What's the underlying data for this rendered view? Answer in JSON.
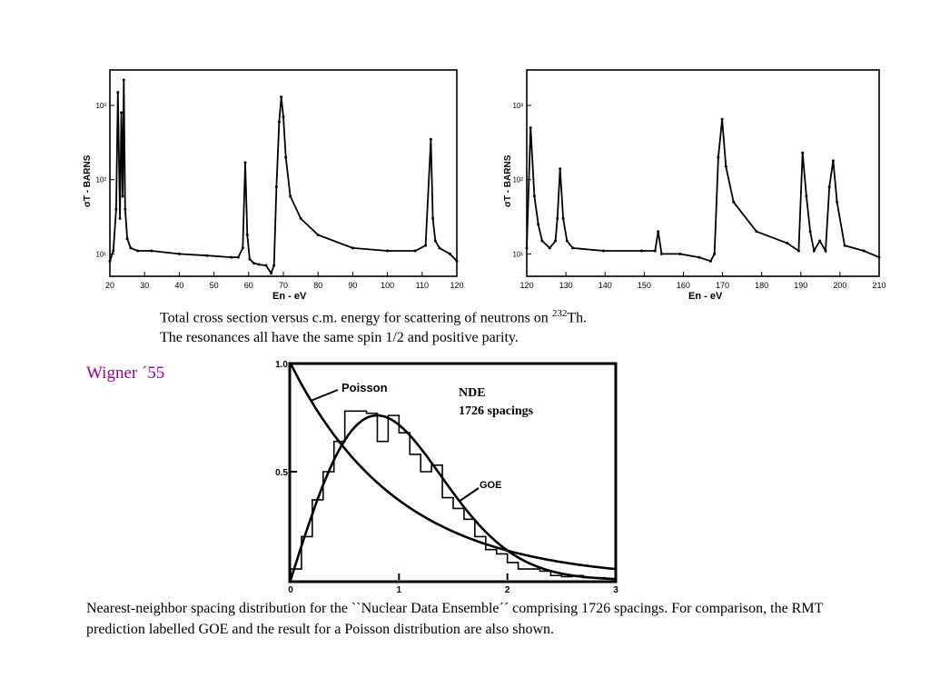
{
  "chart_data": [
    {
      "type": "line",
      "title": "",
      "xlabel": "En - eV",
      "ylabel": "σT - BARNS",
      "yscale": "log",
      "xlim": [
        20,
        120
      ],
      "ylim": [
        5,
        3000
      ],
      "x_ticks": [
        "20",
        "30",
        "40",
        "50",
        "60",
        "70",
        "80",
        "90",
        "100",
        "110",
        "120"
      ],
      "y_ticks": [
        "10¹",
        "10²",
        "10³"
      ],
      "series": [
        {
          "name": "232Th total cross section",
          "x": [
            20.0,
            21.0,
            21.8,
            22.3,
            22.9,
            23.3,
            23.7,
            24.0,
            24.4,
            25.0,
            26.0,
            28.0,
            32.0,
            40.0,
            48.0,
            55.0,
            57.0,
            58.3,
            59.0,
            59.6,
            60.3,
            61.5,
            63.0,
            65.0,
            66.5,
            67.3,
            68.0,
            68.8,
            69.4,
            70.0,
            70.7,
            72.0,
            75.0,
            80.0,
            90.0,
            100.0,
            108.0,
            111.0,
            112.5,
            113.1,
            113.8,
            115.0,
            118.0,
            120.0
          ],
          "y": [
            8,
            11,
            40,
            1500,
            30,
            800,
            60,
            2200,
            40,
            16,
            12,
            11,
            11,
            10,
            9.5,
            9,
            9,
            12,
            170,
            18,
            8.5,
            7.5,
            7.2,
            7.0,
            5.5,
            7,
            80,
            600,
            1300,
            700,
            200,
            60,
            30,
            18,
            12,
            11,
            11,
            13,
            350,
            30,
            15,
            12,
            10,
            8
          ]
        }
      ]
    },
    {
      "type": "line",
      "title": "",
      "xlabel": "En - eV",
      "ylabel": "σT - BARNS",
      "yscale": "log",
      "xlim": [
        120,
        212
      ],
      "ylim": [
        5,
        3000
      ],
      "x_ticks": [
        "120",
        "130",
        "140",
        "150",
        "160",
        "170",
        "180",
        "190",
        "200",
        "210"
      ],
      "y_ticks": [
        "10¹",
        "10²",
        "10³"
      ],
      "series": [
        {
          "name": "232Th total cross section",
          "x": [
            120.0,
            121.0,
            122.0,
            123.0,
            124.0,
            126.0,
            127.5,
            128.0,
            128.7,
            129.5,
            130.5,
            132.0,
            140.0,
            150.0,
            153.5,
            154.3,
            155.2,
            160.0,
            165.0,
            168.0,
            169.0,
            170.0,
            171.0,
            172.0,
            174.0,
            180.0,
            188.0,
            191.0,
            192.0,
            193.0,
            194.0,
            195.0,
            196.5,
            198.0,
            199.0,
            200.0,
            201.0,
            203.0,
            208.0,
            212.0
          ],
          "y": [
            12,
            500,
            60,
            25,
            15,
            12,
            15,
            30,
            140,
            30,
            15,
            12,
            11,
            11,
            11,
            20,
            10,
            10,
            9,
            8,
            10,
            200,
            650,
            150,
            50,
            20,
            14,
            11,
            230,
            60,
            20,
            11,
            15,
            11,
            80,
            180,
            50,
            13,
            11,
            9
          ]
        }
      ]
    },
    {
      "type": "line",
      "title": "",
      "xlabel": "",
      "ylabel": "",
      "xlim": [
        0,
        3
      ],
      "ylim": [
        0,
        1.0
      ],
      "x_ticks": [
        "0",
        "1",
        "2",
        "3"
      ],
      "y_ticks": [
        "0.5",
        "1.0"
      ],
      "annotations": [
        "Poisson",
        "GOE",
        "NDE",
        "1726 spacings"
      ],
      "histogram_bins_start": 0,
      "histogram_bin_width": 0.1,
      "histogram_values": [
        0.05,
        0.2,
        0.37,
        0.5,
        0.64,
        0.78,
        0.78,
        0.77,
        0.64,
        0.76,
        0.68,
        0.58,
        0.5,
        0.53,
        0.38,
        0.33,
        0.28,
        0.2,
        0.14,
        0.12,
        0.08,
        0.05,
        0.05,
        0.04,
        0.02,
        0.015,
        0.02,
        0.01,
        0.01,
        0.005
      ],
      "series": [
        {
          "name": "Poisson",
          "function": "exp(-s)"
        },
        {
          "name": "GOE",
          "function": "(pi/2) s exp(-pi s^2 / 4)"
        }
      ]
    }
  ],
  "text": {
    "caption_top_part1": "Total cross section versus c.m. energy for scattering of neutrons on ",
    "caption_top_sup": "232",
    "caption_top_part2": "Th.",
    "caption_top_line2": "The resonances all have the same spin 1/2 and positive parity.",
    "wigner_label": "Wigner ´55",
    "nde_line1": "NDE",
    "nde_line2": "1726 spacings",
    "poisson_label": "Poisson",
    "goe_label": "GOE",
    "ylabel_left": "σT - BARNS",
    "ylabel_right": "σT - BARNS",
    "xlabel_left": "En - eV",
    "xlabel_right": "En - eV",
    "caption_bottom": "Nearest-neighbor spacing distribution for the ``Nuclear Data Ensemble´´ comprising 1726 spacings. For comparison, the RMT prediction labelled GOE and the result for a Poisson distribution are also shown."
  },
  "colors": {
    "wigner": "#990099",
    "ink": "#000000"
  }
}
